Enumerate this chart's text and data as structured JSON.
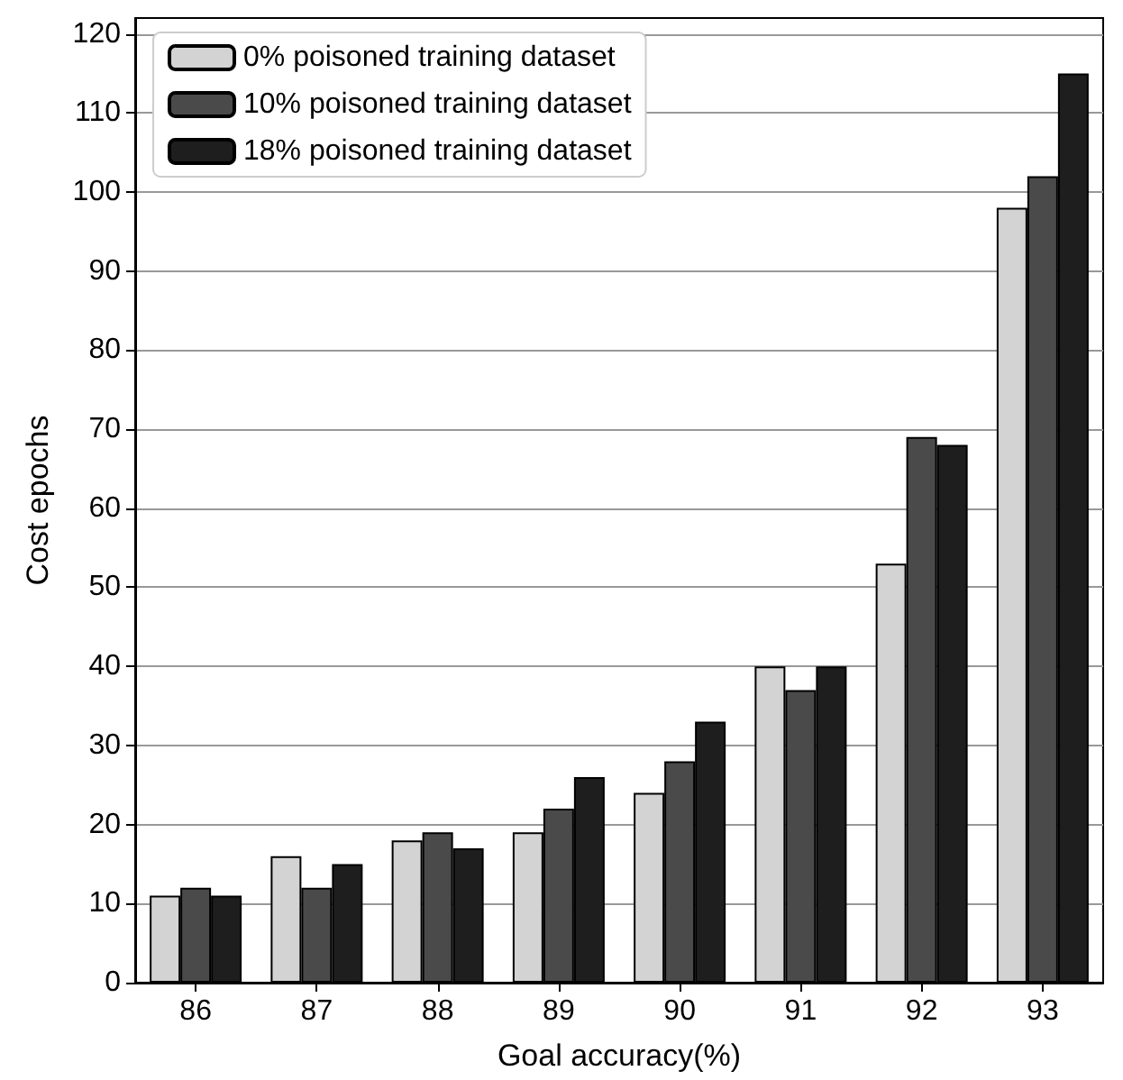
{
  "chart_data": {
    "type": "bar",
    "xlabel": "Goal accuracy(%)",
    "ylabel": "Cost epochs",
    "categories": [
      "86",
      "87",
      "88",
      "89",
      "90",
      "91",
      "92",
      "93"
    ],
    "series": [
      {
        "name": "0% poisoned training dataset",
        "color": "#d3d3d3",
        "values": [
          11,
          16,
          18,
          19,
          24,
          40,
          53,
          98
        ]
      },
      {
        "name": "10% poisoned training dataset",
        "color": "#4a4a4a",
        "values": [
          12,
          12,
          19,
          22,
          28,
          37,
          69,
          102
        ]
      },
      {
        "name": "18% poisoned training dataset",
        "color": "#1e1e1e",
        "values": [
          11,
          15,
          17,
          26,
          33,
          40,
          68,
          115
        ]
      }
    ],
    "ylim": [
      0,
      122
    ],
    "yticks": [
      0,
      10,
      20,
      30,
      40,
      50,
      60,
      70,
      80,
      90,
      100,
      110,
      120
    ],
    "grid": "y",
    "legend": "top left"
  }
}
